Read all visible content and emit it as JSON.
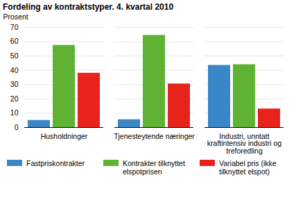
{
  "chart_data": {
    "type": "bar",
    "title": "Fordeling av kontraktstyper. 4. kvartal 2010",
    "y_label": "Prosent",
    "categories": [
      "Husholdninger",
      "Tjenesteytende næringer",
      "Industri, unntatt kraftintensiv industri og treforedling"
    ],
    "series": [
      {
        "name": "Fastpriskontrakter",
        "color": "#3a87c7",
        "values": [
          5,
          5.5,
          43.5
        ]
      },
      {
        "name": "Kontrakter tilknyttet elspotprisen",
        "color": "#5fb232",
        "values": [
          57.5,
          64.5,
          44
        ]
      },
      {
        "name": "Variabel pris (ikke tilknyttet elspot)",
        "color": "#e8231c",
        "values": [
          38,
          30.5,
          13
        ]
      }
    ],
    "ylim": [
      0,
      70
    ],
    "yticks": [
      0,
      10,
      20,
      30,
      40,
      50,
      60,
      70
    ],
    "grid": true,
    "legend": "bottom"
  }
}
